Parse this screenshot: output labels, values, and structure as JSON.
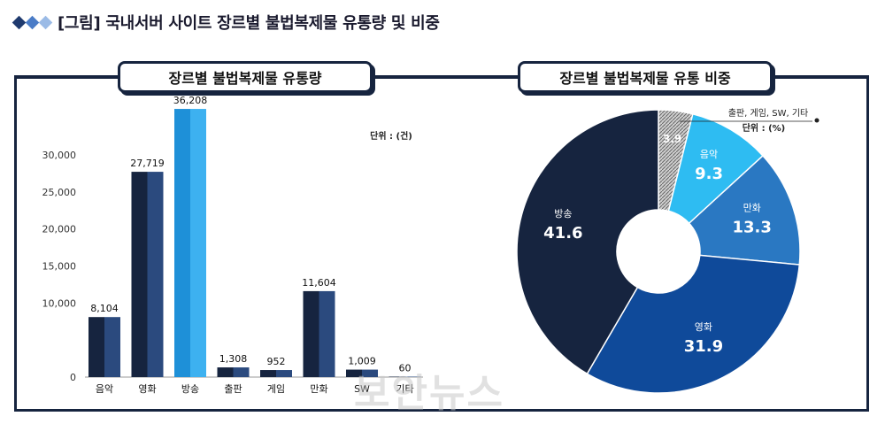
{
  "header": {
    "title": "[그림] 국내서버 사이트 장르별 불법복제물 유통량 및 비중",
    "diamond_colors": [
      "#1f3a6e",
      "#4a7cc7",
      "#9bbbe6"
    ]
  },
  "watermark": "보안뉴스",
  "chart_data": [
    {
      "type": "bar",
      "title": "장르별 불법복제물 유통량",
      "unit_label": "단위 : (건)",
      "categories": [
        "음악",
        "영화",
        "방송",
        "출판",
        "게임",
        "만화",
        "SW",
        "기타"
      ],
      "values": [
        8104,
        27719,
        36208,
        1308,
        952,
        11604,
        1009,
        60
      ],
      "value_labels": [
        "8,104",
        "27,719",
        "36,208",
        "1,308",
        "952",
        "11,604",
        "1,009",
        "60"
      ],
      "yticks": [
        "0",
        "10,000",
        "15,000",
        "20,000",
        "25,000",
        "30,000"
      ],
      "ytick_values": [
        0,
        10000,
        15000,
        20000,
        25000,
        30000
      ],
      "ylim": [
        0,
        33000
      ],
      "colors": {
        "dark": "#16243f",
        "bar": "#2b4a7e",
        "highlight": "#3db1f0",
        "highlight_dark": "#1e90d8"
      },
      "highlight_category": "방송"
    },
    {
      "type": "pie",
      "title": "장르별 불법복제물 유통 비중",
      "unit_label": "단위 : (%)",
      "annotation": "출판, 게임, SW, 기타",
      "slices": [
        {
          "label": "",
          "value": 3.9,
          "value_label": "3.9",
          "color": "#b5b5b5"
        },
        {
          "label": "음악",
          "value": 9.3,
          "value_label": "9.3",
          "color": "#2ebcf2"
        },
        {
          "label": "만화",
          "value": 13.3,
          "value_label": "13.3",
          "color": "#2a78c2"
        },
        {
          "label": "영화",
          "value": 31.9,
          "value_label": "31.9",
          "color": "#0f4a9a"
        },
        {
          "label": "방송",
          "value": 41.6,
          "value_label": "41.6",
          "color": "#16243f"
        }
      ]
    }
  ]
}
